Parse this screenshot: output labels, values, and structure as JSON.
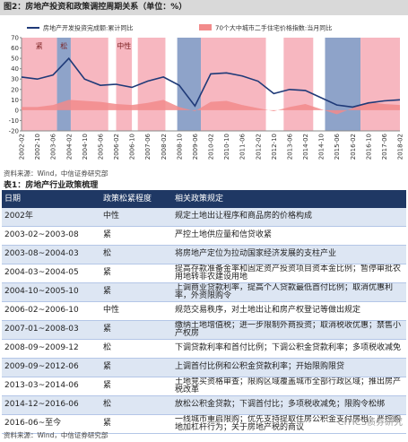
{
  "chart_data": {
    "type": "line",
    "title": "图2：房地产投资和政策调控周期关系（单位：%）",
    "x": [
      "2002-02",
      "2002-10",
      "2003-06",
      "2004-02",
      "2004-10",
      "2005-06",
      "2006-02",
      "2006-10",
      "2007-06",
      "2008-02",
      "2008-10",
      "2009-06",
      "2010-02",
      "2010-10",
      "2011-06",
      "2012-02",
      "2012-10",
      "2013-06",
      "2014-02",
      "2014-10",
      "2015-06",
      "2016-02",
      "2016-10",
      "2017-06",
      "2018-02"
    ],
    "series": [
      {
        "name": "房地产开发投资完成额:累计同比",
        "color": "#1f3a78",
        "style": "line",
        "values": [
          32,
          30,
          34,
          50,
          30,
          24,
          25,
          22,
          28,
          32,
          24,
          4,
          35,
          36,
          33,
          28,
          16,
          20,
          19,
          12,
          5,
          3,
          7,
          9,
          10
        ]
      },
      {
        "name": "70个大中城市二手住宅价格指数:当月同比",
        "color": "#f28b8b",
        "style": "area",
        "values": [
          3,
          3,
          5,
          10,
          9,
          8,
          6,
          5,
          7,
          10,
          3,
          -1,
          8,
          9,
          5,
          2,
          -1,
          3,
          6,
          1,
          -4,
          2,
          8,
          6,
          5
        ]
      }
    ],
    "bands": [
      {
        "start": "2002-02",
        "end": "2003-08",
        "color": "#f7b7c0",
        "label": "紧"
      },
      {
        "start": "2003-08",
        "end": "2004-03",
        "color": "#8ea3c9",
        "label": "松"
      },
      {
        "start": "2004-03",
        "end": "2005-10",
        "color": "#f7b7c0"
      },
      {
        "start": "2006-02",
        "end": "2006-10",
        "color": "#f7b7c0",
        "label": "中性"
      },
      {
        "start": "2007-01",
        "end": "2008-03",
        "color": "#f7b7c0"
      },
      {
        "start": "2008-09",
        "end": "2009-09",
        "color": "#8ea3c9"
      },
      {
        "start": "2009-09",
        "end": "2012-06",
        "color": "#f7b7c0"
      },
      {
        "start": "2013-03",
        "end": "2014-06",
        "color": "#f7b7c0"
      },
      {
        "start": "2014-12",
        "end": "2016-06",
        "color": "#8ea3c9"
      },
      {
        "start": "2016-06",
        "end": "2018-02",
        "color": "#f7b7c0"
      }
    ],
    "ylim": [
      -20,
      70
    ],
    "yticks": [
      -20,
      -10,
      0,
      10,
      20,
      30,
      40,
      50,
      60,
      70
    ],
    "grid": false
  },
  "chart_source": "资料来源：Wind，中信证券研究部",
  "table": {
    "caption": "表1：房地产行业政策梳理",
    "header": [
      "日期",
      "政策松紧程度",
      "相关政策规定"
    ],
    "rows": [
      [
        "2002年",
        "中性",
        "规定土地出让程序和商品房的价格构成"
      ],
      [
        "2003-02~2003-08",
        "紧",
        "严控土地供应量和信贷收紧"
      ],
      [
        "2003-08~2004-03",
        "松",
        "将房地产定位为拉动国家经济发展的支柱产业"
      ],
      [
        "2004-03~2004-05",
        "紧",
        "提高存款准备金率和固定资产投资项目资本金比例；暂停审批农用地转非农建设用地"
      ],
      [
        "2004-10~2005-10",
        "紧",
        "上调商业贷款利率，提高个人贷款最低首付比例；取消优惠利率，外资限购令"
      ],
      [
        "2006-02~2006-10",
        "中性",
        "规范交易秩序，对土地出让和房产权登记等做出规定"
      ],
      [
        "2007-01~2008-03",
        "紧",
        "缴纳土地增值税；进一步限制外商投资；取消税收优惠；禁售小产权房"
      ],
      [
        "2008-09~2009-12",
        "松",
        "下调贷款利率和首付比例；下调公积金贷款利率；多项税收减免"
      ],
      [
        "2009-09~2012-06",
        "紧",
        "上调首付比例和公积金贷款利率；开始限购限贷"
      ],
      [
        "2013-03~2014-06",
        "紧",
        "土地竞买资格审查；限购区域覆盖城市全部行政区域；推出房产税改革"
      ],
      [
        "2014-12~2016-06",
        "松",
        "放松公积金贷款；下调首付比；多项税收减免；限购令松绑"
      ],
      [
        "2016-06~至今",
        "紧",
        "一线城市重启限购；优先支持提取住房公积金支付房租；严控购地加杠杆行为；关于房地产税的商议"
      ]
    ]
  },
  "table_source": "资料来源：Wind，中信证券研究部",
  "watermark": "CITICS债券研究"
}
